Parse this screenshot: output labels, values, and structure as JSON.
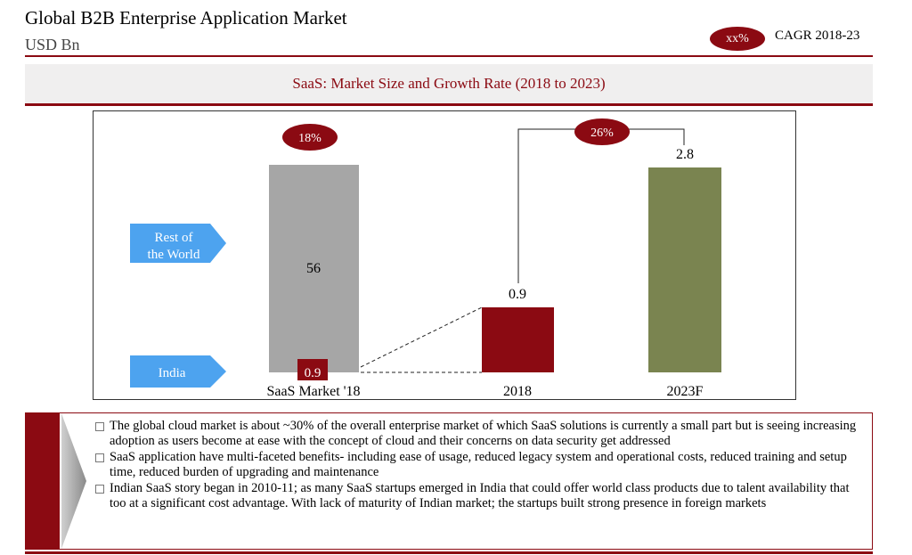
{
  "header": {
    "title": "Global B2B Enterprise Application Market",
    "subtitle": "USD Bn",
    "legend_badge": "xx%",
    "legend_text": "CAGR 2018-23"
  },
  "section_title": "SaaS: Market Size and Growth Rate (2018 to 2023)",
  "chart_data": {
    "type": "bar",
    "categories": [
      "SaaS Market '18",
      "2018",
      "2023F"
    ],
    "stacked_bar": {
      "category": "SaaS Market '18",
      "segments": [
        {
          "name": "Rest of the World",
          "value": 56,
          "label": "56",
          "color": "#a6a6a6"
        },
        {
          "name": "India",
          "value": 0.9,
          "label": "0.9",
          "color": "#8b0a12"
        }
      ]
    },
    "india_bars": [
      {
        "category": "2018",
        "value": 0.9,
        "label": "0.9",
        "color": "#8b0a12"
      },
      {
        "category": "2023F",
        "value": 2.8,
        "label": "2.8",
        "color": "#7a8450"
      }
    ],
    "growth_badges": [
      {
        "label": "18%",
        "applies_to": "SaaS Market '18"
      },
      {
        "label": "26%",
        "applies_to": "2018 to 2023F"
      }
    ],
    "callouts": [
      {
        "label": "Rest of\nthe World"
      },
      {
        "label": "India"
      }
    ],
    "colors": {
      "accent": "#8b0a12",
      "gray": "#a6a6a6",
      "olive": "#7a8450",
      "callout": "#4da3ef"
    }
  },
  "notes": [
    "The global cloud market is about ~30% of the overall enterprise market of which SaaS solutions is currently a small part but is seeing increasing adoption as users become at ease with the concept of cloud and their concerns on data security get addressed",
    "SaaS application have multi-faceted benefits- including ease of usage, reduced legacy system and operational costs, reduced training and setup time, reduced burden of upgrading and maintenance",
    "Indian SaaS story began in 2010-11; as many SaaS startups emerged in India that could offer world class products due to talent availability that too at a significant cost advantage. With lack of maturity of Indian market; the startups built strong presence in foreign markets"
  ]
}
